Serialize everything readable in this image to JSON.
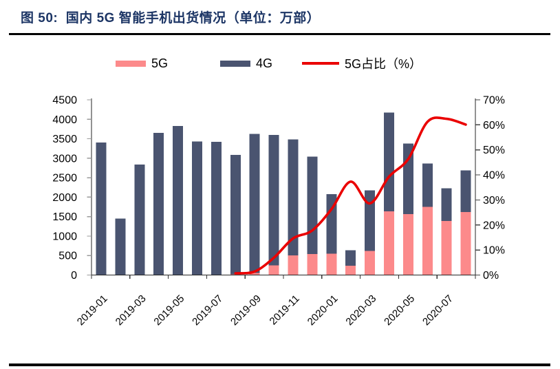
{
  "figure": {
    "title": "图 50:  国内 5G 智能手机出货情况（单位：万部）"
  },
  "legend": {
    "items": [
      {
        "label": "5G",
        "color": "#fc8a8b",
        "marker": "bar-swatch"
      },
      {
        "label": "4G",
        "color": "#4a5470",
        "marker": "bar-swatch"
      },
      {
        "label": "5G占比（%）",
        "color": "#ea0000",
        "marker": "line-swatch"
      }
    ]
  },
  "chart_data": {
    "type": "combo-stacked-bar-line",
    "categories": [
      "2019-01",
      "2019-02",
      "2019-03",
      "2019-04",
      "2019-05",
      "2019-06",
      "2019-07",
      "2019-08",
      "2019-09",
      "2019-10",
      "2019-11",
      "2019-12",
      "2020-01",
      "2020-02",
      "2020-03",
      "2020-04",
      "2020-05",
      "2020-06",
      "2020-07",
      "2020-08"
    ],
    "x_labels": [
      "2019-01",
      "2019-03",
      "2019-05",
      "2019-07",
      "2019-09",
      "2019-11",
      "2020-01",
      "2020-03",
      "2020-05",
      "2020-07"
    ],
    "x_tick_interval": 2,
    "series": [
      {
        "name": "5G",
        "type": "bar",
        "stack": "shipments",
        "color": "#fc8a8b",
        "values": [
          0,
          0,
          0,
          0,
          0,
          0,
          0,
          21.9,
          49.7,
          249.4,
          507.4,
          541.4,
          546.5,
          238.0,
          621.5,
          1638.2,
          1564.3,
          1751.3,
          1391.1,
          1617.0
        ]
      },
      {
        "name": "4G",
        "type": "bar",
        "stack": "shipments",
        "color": "#4a5470",
        "values": [
          3404.8,
          1451.1,
          2837.3,
          3653.2,
          3829.3,
          3431.0,
          3419.9,
          3065.6,
          3573.9,
          3347.5,
          2976.8,
          2503.0,
          1534.8,
          400.4,
          1554.1,
          2534.6,
          1811.6,
          1111.7,
          839.0,
          1073.7
        ]
      },
      {
        "name": "5G占比（%）",
        "type": "line",
        "axis": "right",
        "color": "#ea0000",
        "smooth": true,
        "values": [
          null,
          null,
          null,
          null,
          null,
          null,
          null,
          0.7,
          1.4,
          6.9,
          14.6,
          17.8,
          26.3,
          37.3,
          28.6,
          39.3,
          46.3,
          61.2,
          62.4,
          60.1
        ]
      }
    ],
    "left_axis": {
      "min": 0,
      "max": 4500,
      "step": 500,
      "ticks": [
        "0",
        "500",
        "1000",
        "1500",
        "2000",
        "2500",
        "3000",
        "3500",
        "4000",
        "4500"
      ]
    },
    "right_axis": {
      "min": 0,
      "max": 70,
      "step": 10,
      "suffix": "%",
      "ticks": [
        "0%",
        "10%",
        "20%",
        "30%",
        "40%",
        "50%",
        "60%",
        "70%"
      ]
    },
    "grid": false,
    "legend_position": "top"
  }
}
